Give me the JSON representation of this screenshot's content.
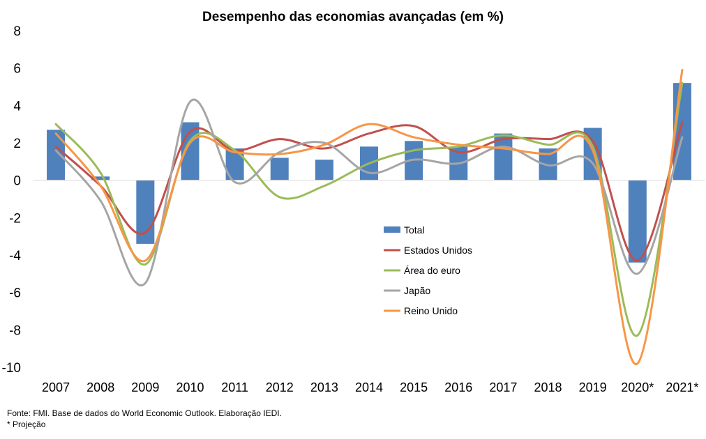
{
  "chart_data": {
    "type": "bar",
    "title": "Desempenho das economias avançadas (em %)",
    "categories": [
      "2007",
      "2008",
      "2009",
      "2010",
      "2011",
      "2012",
      "2013",
      "2014",
      "2015",
      "2016",
      "2017",
      "2018",
      "2019",
      "2020*",
      "2021*"
    ],
    "ylim": [
      -10,
      8
    ],
    "yticks": [
      8,
      6,
      4,
      2,
      0,
      -2,
      -4,
      -6,
      -8,
      -10
    ],
    "series": [
      {
        "name": "Total",
        "type": "bar",
        "color": "#4F81BD",
        "values": [
          2.7,
          0.2,
          -3.4,
          3.1,
          1.7,
          1.2,
          1.1,
          1.8,
          2.1,
          1.8,
          2.5,
          1.7,
          2.8,
          -4.4,
          5.2
        ]
      },
      {
        "name": "Estados Unidos",
        "type": "line",
        "color": "#C0504D",
        "values": [
          1.8,
          -0.3,
          -2.8,
          2.6,
          1.6,
          2.2,
          1.7,
          2.5,
          2.9,
          1.5,
          2.2,
          2.2,
          2.1,
          -4.3,
          3.1
        ]
      },
      {
        "name": "Área do euro",
        "type": "line",
        "color": "#9BBB59",
        "values": [
          3.0,
          0.4,
          -4.5,
          2.1,
          1.6,
          -0.9,
          -0.3,
          0.9,
          1.6,
          1.8,
          2.4,
          1.9,
          1.8,
          -8.3,
          5.2
        ]
      },
      {
        "name": "Japão",
        "type": "line",
        "color": "#A5A5A5",
        "values": [
          1.6,
          -1.1,
          -5.5,
          4.2,
          -0.1,
          1.5,
          2.0,
          0.4,
          1.1,
          0.9,
          1.8,
          0.8,
          0.9,
          -5.0,
          2.3
        ]
      },
      {
        "name": "Reino Unido",
        "type": "line",
        "color": "#F79646",
        "values": [
          2.5,
          -0.3,
          -4.3,
          2.0,
          1.5,
          1.4,
          1.9,
          3.0,
          2.3,
          1.9,
          1.7,
          1.4,
          1.6,
          -9.8,
          5.9
        ]
      }
    ],
    "legend_position": "center-right",
    "grid": false
  },
  "footnote": {
    "source": "Fonte: FMI. Base de dados do World Economic Outlook. Elaboração IEDI.",
    "note": "* Projeção"
  }
}
